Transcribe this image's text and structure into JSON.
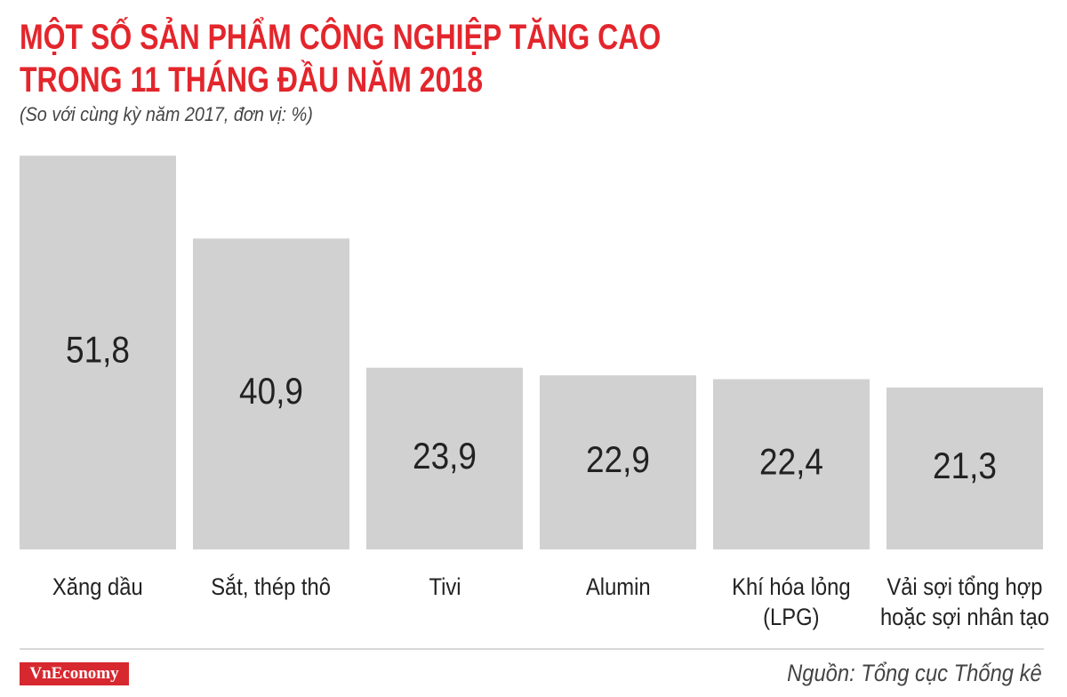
{
  "chart_data": {
    "type": "bar",
    "title": "MỘT SỐ SẢN PHẨM CÔNG NGHIỆP TĂNG CAO\nTRONG 11 THÁNG ĐẦU NĂM 2018",
    "subtitle": "(So với cùng kỳ năm 2017, đơn vị: %)",
    "categories": [
      "Xăng dầu",
      "Sắt, thép thô",
      "Tivi",
      "Alumin",
      "Khí hóa lỏng\n(LPG)",
      "Vải sợi tổng hợp\nhoặc sợi nhân tạo"
    ],
    "values": [
      51.8,
      40.9,
      23.9,
      22.9,
      22.4,
      21.3
    ],
    "value_labels": [
      "51,8",
      "40,9",
      "23,9",
      "22,9",
      "22,4",
      "21,3"
    ],
    "color": "#d1d1d1",
    "logo": "VnEconomy",
    "source": "Nguồn: Tổng cục Thống kê"
  }
}
